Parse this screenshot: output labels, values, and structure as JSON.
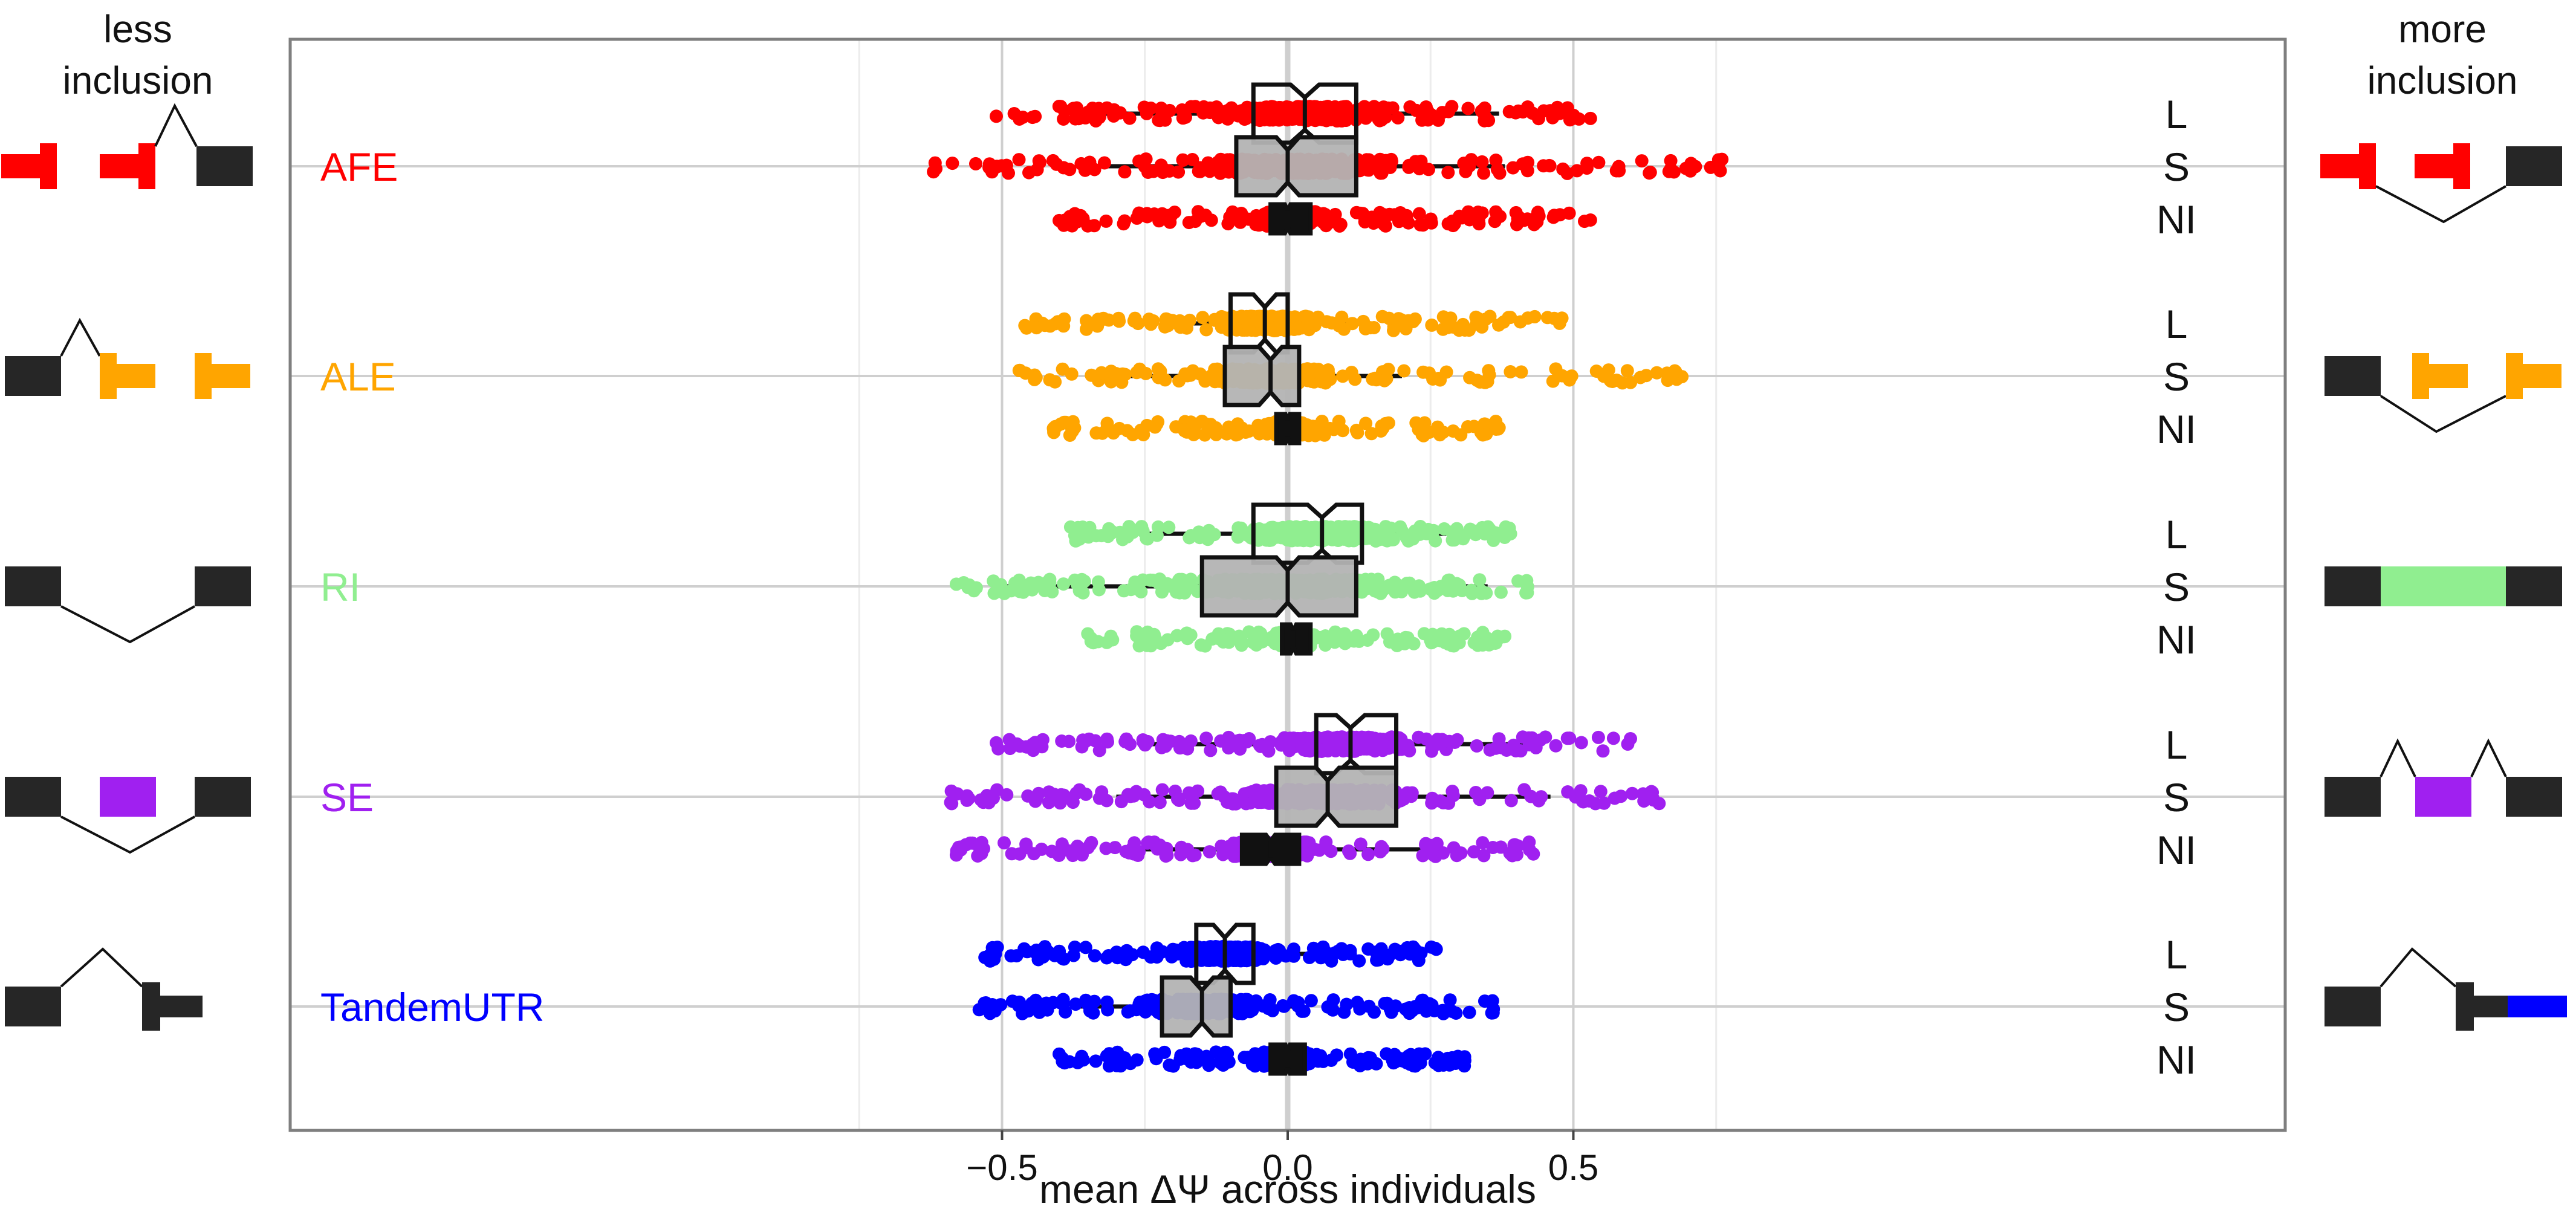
{
  "left_header": [
    "less",
    "inclusion"
  ],
  "right_header": [
    "more",
    "inclusion"
  ],
  "colors": {
    "AFE": "#ff0000",
    "ALE": "#ffa500",
    "RI": "#90ee90",
    "SE": "#a020f0",
    "TandemUTR": "#0000ff",
    "exon": "#262626",
    "grid": "#cfcfcf",
    "frame": "#7f7f7f"
  },
  "chart_data": {
    "type": "box",
    "xlabel": "mean ΔΨ across individuals",
    "xlim": [
      -0.87,
      0.87
    ],
    "xticks": [
      -0.5,
      0.0,
      0.5
    ],
    "xtick_labels": [
      "−0.5",
      "0.0",
      "0.5"
    ],
    "grid": true,
    "conditions": [
      "L",
      "S",
      "NI"
    ],
    "groups": [
      {
        "name": "AFE",
        "color": "#ff0000",
        "icon_left": "afe-less-icon",
        "icon_right": "afe-more-icon",
        "boxes": [
          {
            "condition": "L",
            "whisker_low": -0.36,
            "q1": -0.06,
            "median": 0.03,
            "q3": 0.12,
            "whisker_high": 0.37,
            "notch": 0.025,
            "points_min": -0.51,
            "points_max": 0.53
          },
          {
            "condition": "S",
            "whisker_low": -0.37,
            "q1": -0.09,
            "median": 0.0,
            "q3": 0.12,
            "whisker_high": 0.38,
            "notch": 0.02,
            "points_min": -0.62,
            "points_max": 0.76
          },
          {
            "condition": "NI",
            "whisker_low": -0.08,
            "q1": -0.03,
            "median": 0.0,
            "q3": 0.04,
            "whisker_high": 0.09,
            "notch": 0.005,
            "points_min": -0.4,
            "points_max": 0.53
          }
        ]
      },
      {
        "name": "ALE",
        "color": "#ffa500",
        "icon_left": "ale-less-icon",
        "icon_right": "ale-more-icon",
        "boxes": [
          {
            "condition": "L",
            "whisker_low": -0.2,
            "q1": -0.1,
            "median": -0.04,
            "q3": 0.0,
            "whisker_high": 0.12,
            "notch": 0.02,
            "points_min": -0.46,
            "points_max": 0.48
          },
          {
            "condition": "S",
            "whisker_low": -0.3,
            "q1": -0.11,
            "median": -0.03,
            "q3": 0.02,
            "whisker_high": 0.2,
            "notch": 0.02,
            "points_min": -0.47,
            "points_max": 0.69
          },
          {
            "condition": "NI",
            "whisker_low": -0.05,
            "q1": -0.02,
            "median": 0.0,
            "q3": 0.02,
            "whisker_high": 0.06,
            "notch": 0.004,
            "points_min": -0.41,
            "points_max": 0.37
          }
        ]
      },
      {
        "name": "RI",
        "color": "#90ee90",
        "icon_left": "ri-less-icon",
        "icon_right": "ri-more-icon",
        "boxes": [
          {
            "condition": "L",
            "whisker_low": -0.31,
            "q1": -0.06,
            "median": 0.06,
            "q3": 0.13,
            "whisker_high": 0.34,
            "notch": 0.025,
            "points_min": -0.38,
            "points_max": 0.39
          },
          {
            "condition": "S",
            "whisker_low": -0.51,
            "q1": -0.15,
            "median": 0.0,
            "q3": 0.12,
            "whisker_high": 0.35,
            "notch": 0.02,
            "points_min": -0.58,
            "points_max": 0.42
          },
          {
            "condition": "NI",
            "whisker_low": -0.06,
            "q1": -0.01,
            "median": 0.01,
            "q3": 0.04,
            "whisker_high": 0.08,
            "notch": 0.005,
            "points_min": -0.35,
            "points_max": 0.38
          }
        ]
      },
      {
        "name": "SE",
        "color": "#a020f0",
        "icon_left": "se-less-icon",
        "icon_right": "se-more-icon",
        "boxes": [
          {
            "condition": "L",
            "whisker_low": -0.25,
            "q1": 0.05,
            "median": 0.11,
            "q3": 0.19,
            "whisker_high": 0.42,
            "notch": 0.025,
            "points_min": -0.51,
            "points_max": 0.6
          },
          {
            "condition": "S",
            "whisker_low": -0.3,
            "q1": -0.02,
            "median": 0.07,
            "q3": 0.19,
            "whisker_high": 0.46,
            "notch": 0.02,
            "points_min": -0.59,
            "points_max": 0.65
          },
          {
            "condition": "NI",
            "whisker_low": -0.3,
            "q1": -0.08,
            "median": -0.03,
            "q3": 0.02,
            "whisker_high": 0.25,
            "notch": 0.008,
            "points_min": -0.58,
            "points_max": 0.43
          }
        ]
      },
      {
        "name": "TandemUTR",
        "color": "#0000ff",
        "icon_left": "tandemutr-less-icon",
        "icon_right": "tandemutr-more-icon",
        "boxes": [
          {
            "condition": "L",
            "whisker_low": -0.3,
            "q1": -0.16,
            "median": -0.11,
            "q3": -0.06,
            "whisker_high": 0.05,
            "notch": 0.02,
            "points_min": -0.53,
            "points_max": 0.26
          },
          {
            "condition": "S",
            "whisker_low": -0.38,
            "q1": -0.22,
            "median": -0.15,
            "q3": -0.1,
            "whisker_high": 0.02,
            "notch": 0.02,
            "points_min": -0.54,
            "points_max": 0.36
          },
          {
            "condition": "NI",
            "whisker_low": -0.07,
            "q1": -0.03,
            "median": 0.0,
            "q3": 0.03,
            "whisker_high": 0.07,
            "notch": 0.004,
            "points_min": -0.4,
            "points_max": 0.31
          }
        ]
      }
    ]
  }
}
